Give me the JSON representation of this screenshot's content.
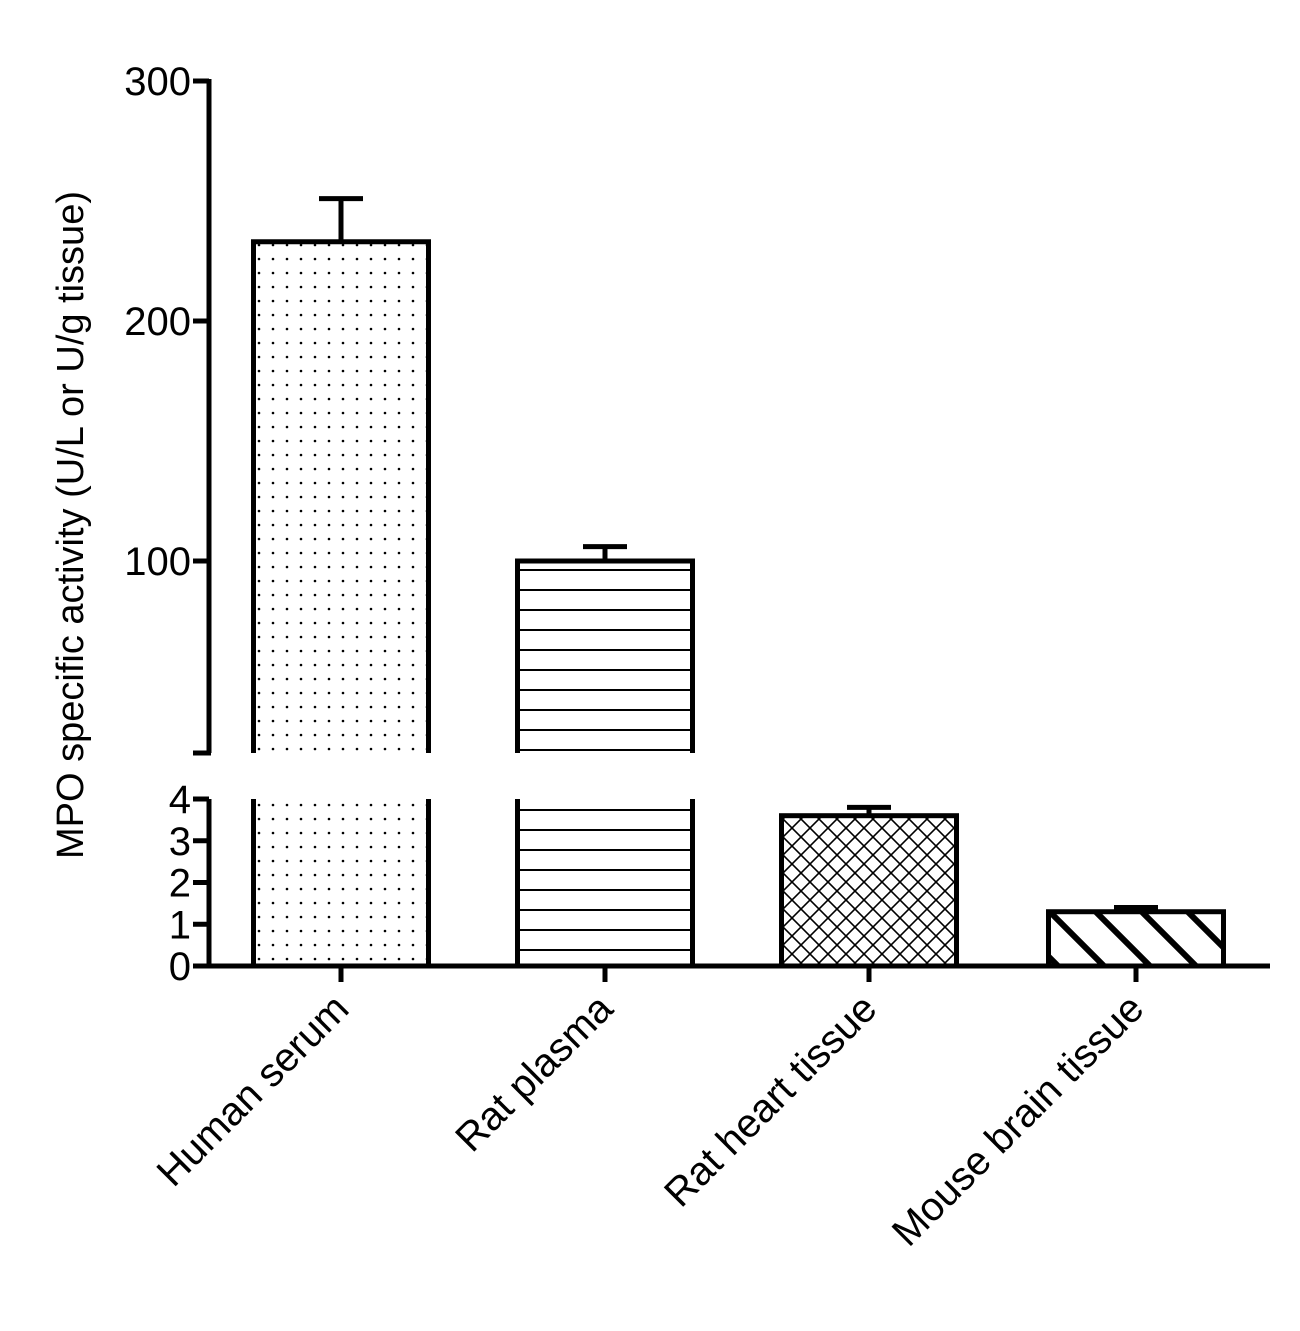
{
  "chart_data": {
    "type": "bar",
    "title": "",
    "xlabel": "",
    "ylabel": "MPO specific activity (U/L or U/g tissue)",
    "categories": [
      "Human serum",
      "Rat plasma",
      "Rat heart tissue",
      "Mouse brain tissue"
    ],
    "values": [
      233,
      100,
      3.6,
      1.3
    ],
    "error_upper": [
      251,
      106,
      3.8,
      1.4
    ],
    "patterns": [
      "dots",
      "horizontal-lines",
      "crosshatch",
      "wide-diagonal"
    ],
    "axis_break": true,
    "y_segments": [
      {
        "range": [
          0,
          4
        ],
        "ticks": [
          0,
          1,
          2,
          3,
          4
        ]
      },
      {
        "range": [
          20,
          300
        ],
        "ticks": [
          100,
          200,
          300
        ]
      }
    ],
    "grid": false,
    "legend": "none"
  }
}
